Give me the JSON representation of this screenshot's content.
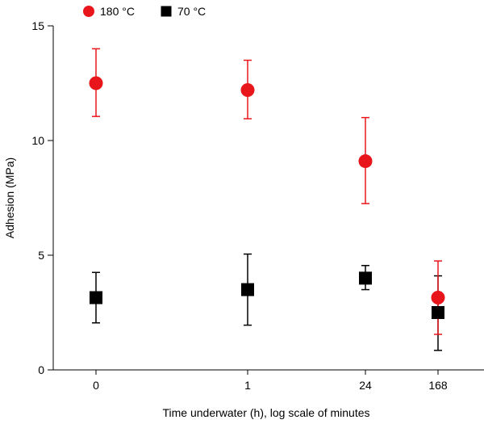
{
  "chart_data": {
    "type": "scatter",
    "xlabel": "Time underwater (h), log scale of minutes",
    "ylabel": "Adhesion (MPa)",
    "categories": [
      "0",
      "1",
      "24",
      "168"
    ],
    "ylim": [
      0,
      15
    ],
    "yticks": [
      0,
      5,
      10,
      15
    ],
    "grid": false,
    "legend_position": "top-left",
    "series": [
      {
        "name": "180 °C",
        "marker": "circle",
        "color": "#e8161b",
        "values": [
          12.5,
          12.2,
          9.1,
          3.15
        ],
        "err_low": [
          11.05,
          10.95,
          7.25,
          1.55
        ],
        "err_high": [
          14.0,
          13.5,
          11.0,
          4.75
        ]
      },
      {
        "name": "70 °C",
        "marker": "square",
        "color": "#000000",
        "values": [
          3.15,
          3.5,
          4.0,
          2.5
        ],
        "err_low": [
          2.05,
          1.95,
          3.5,
          0.85
        ],
        "err_high": [
          4.25,
          5.05,
          4.55,
          4.1
        ]
      }
    ]
  }
}
